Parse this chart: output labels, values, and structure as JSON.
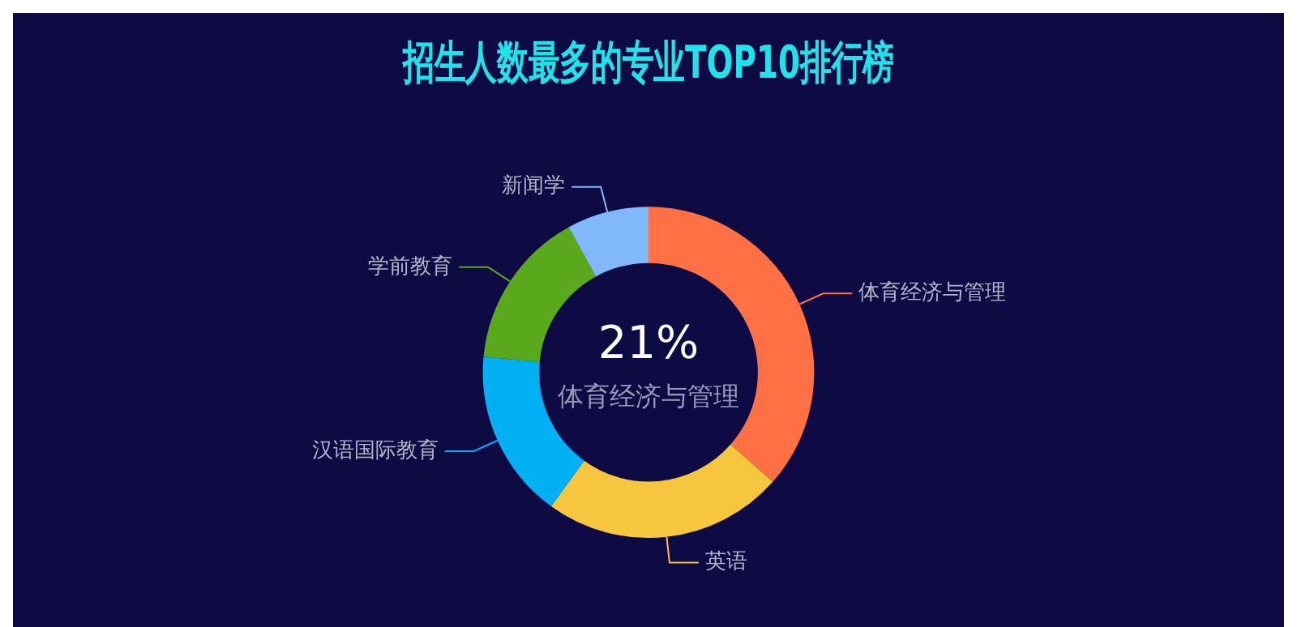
{
  "chart_data": {
    "type": "donut",
    "title": "招生人数最多的专业TOP10排行榜",
    "categories": [
      "体育经济与管理",
      "英语",
      "汉语国际教育",
      "学前教育",
      "新闻学"
    ],
    "values": [
      36.5,
      23.5,
      16.5,
      15.5,
      8
    ],
    "colors": [
      "#ff7044",
      "#f6c63e",
      "#00b0f2",
      "#5aa81c",
      "#80b8fa"
    ],
    "annotations": [
      "21%",
      "体育经济与管理"
    ],
    "legend": false
  }
}
